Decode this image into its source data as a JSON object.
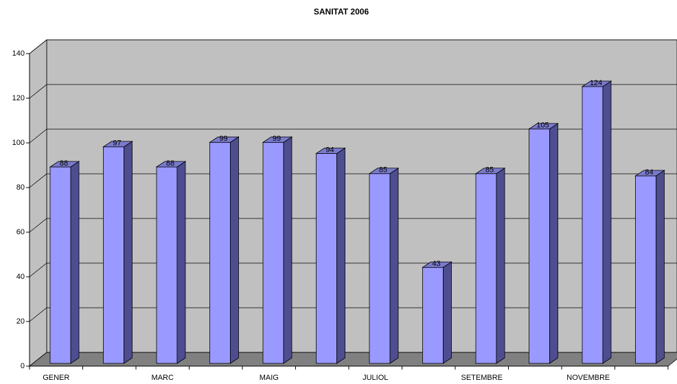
{
  "chart_data": {
    "type": "bar3d",
    "title": "SANITAT 2006",
    "categories": [
      "GENER",
      null,
      "MARC",
      null,
      "MAIG",
      null,
      "JULIOL",
      null,
      "SETEMBRE",
      null,
      "NOVEMBRE",
      null
    ],
    "values": [
      88,
      97,
      88,
      99,
      99,
      94,
      85,
      43,
      85,
      105,
      124,
      84
    ],
    "color": "#9999ff",
    "ylim": [
      0,
      140
    ],
    "yticks": [
      0,
      20,
      40,
      60,
      80,
      100,
      120,
      140
    ],
    "grid": true
  }
}
